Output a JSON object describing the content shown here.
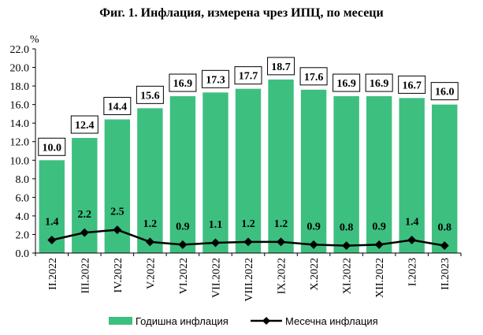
{
  "chart_data": {
    "type": "bar",
    "title": "Фиг. 1. Инфлация, измерена чрез ИПЦ, по месеци",
    "ylabel": "%",
    "ylim": [
      0,
      22
    ],
    "yticks": [
      "0.0",
      "2.0",
      "4.0",
      "6.0",
      "8.0",
      "10.0",
      "12.0",
      "14.0",
      "16.0",
      "18.0",
      "20.0",
      "22.0"
    ],
    "categories": [
      "II.2022",
      "III.2022",
      "IV.2022",
      "V.2022",
      "VI.2022",
      "VII.2022",
      "VIII.2022",
      "IX.2022",
      "X.2022",
      "XI.2022",
      "XII.2022",
      "I.2023",
      "II.2023"
    ],
    "series": [
      {
        "name": "Годишна инфлация",
        "type": "bar",
        "color": "#3dbf80",
        "values": [
          10.0,
          12.4,
          14.4,
          15.6,
          16.9,
          17.3,
          17.7,
          18.7,
          17.6,
          16.9,
          16.9,
          16.7,
          16.0
        ],
        "labels": [
          "10.0",
          "12.4",
          "14.4",
          "15.6",
          "16.9",
          "17.3",
          "17.7",
          "18.7",
          "17.6",
          "16.9",
          "16.9",
          "16.7",
          "16.0"
        ]
      },
      {
        "name": "Месечна инфлация",
        "type": "line",
        "color": "#000000",
        "values": [
          1.4,
          2.2,
          2.5,
          1.2,
          0.9,
          1.1,
          1.2,
          1.2,
          0.9,
          0.8,
          0.9,
          1.4,
          0.8
        ],
        "labels": [
          "1.4",
          "2.2",
          "2.5",
          "1.2",
          "0.9",
          "1.1",
          "1.2",
          "1.2",
          "0.9",
          "0.8",
          "0.9",
          "1.4",
          "0.8"
        ]
      }
    ],
    "grid": false,
    "legend": "bottom"
  }
}
